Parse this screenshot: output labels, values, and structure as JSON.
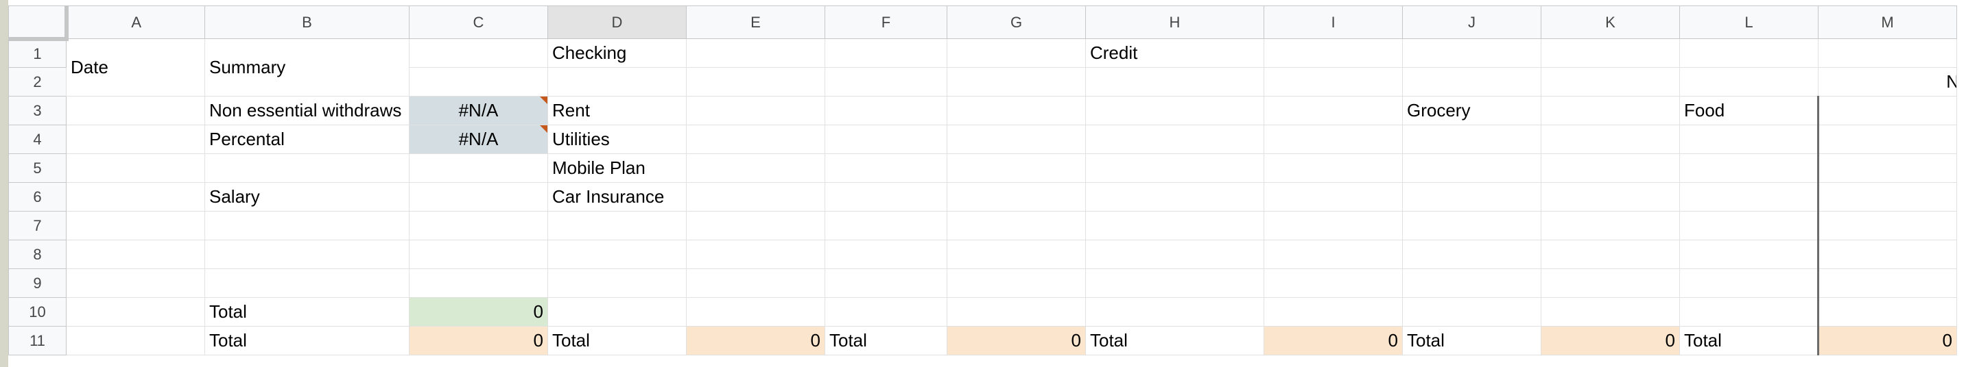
{
  "columns": [
    "A",
    "B",
    "C",
    "D",
    "E",
    "F",
    "G",
    "H",
    "I",
    "J",
    "K",
    "L",
    "M"
  ],
  "rows": [
    "1",
    "2",
    "3",
    "4",
    "5",
    "6",
    "7",
    "8",
    "9",
    "10",
    "11"
  ],
  "headers": {
    "date": "Date",
    "summary": "Summary",
    "checking": "Checking",
    "credit": "Credit",
    "n_partial": "N"
  },
  "summary": {
    "non_essential_label": "Non essential withdraws",
    "non_essential_value": "#N/A",
    "percental_label": "Percental",
    "percental_value": "#N/A",
    "salary_label": "Salary",
    "total_label": "Total",
    "total_value": "0",
    "total2_label": "Total",
    "total2_value": "0"
  },
  "checking": {
    "items": [
      "Rent",
      "Utilities",
      "Mobile Plan",
      "Car Insurance"
    ],
    "total_label": "Total",
    "total_value": "0"
  },
  "totals_f": {
    "label": "Total",
    "value": "0"
  },
  "credit": {
    "total_label": "Total",
    "total_value": "0"
  },
  "grocery": {
    "label": "Grocery",
    "total_label": "Total",
    "total_value": "0"
  },
  "food": {
    "label": "Food",
    "total_label": "Total",
    "total_value": "0"
  },
  "colors": {
    "blue_cell": "#d4dde2",
    "green_cell": "#d9ead3",
    "peach_cell": "#fbe5cd",
    "error_marker": "#c5581c",
    "header_rule": "#2f3d6a"
  }
}
